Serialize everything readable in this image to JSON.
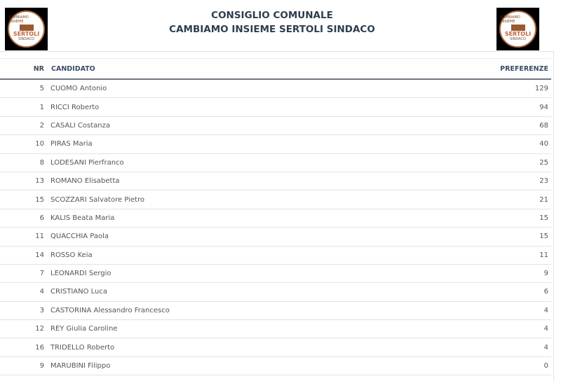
{
  "header": {
    "title_line1": "CONSIGLIO COMUNALE",
    "title_line2": "CAMBIAMO INSIEME SERTOLI SINDACO",
    "logo": {
      "top_text": "CAMBIAMO INSIEME",
      "name": "SERTOLI",
      "sub": "SINDACO"
    }
  },
  "table": {
    "columns": {
      "nr": "NR",
      "candidate": "CANDIDATO",
      "preferences": "PREFERENZE"
    },
    "rows": [
      {
        "nr": "5",
        "name": "CUOMO Antonio",
        "pref": "129"
      },
      {
        "nr": "1",
        "name": "RICCI Roberto",
        "pref": "94"
      },
      {
        "nr": "2",
        "name": "CASALI Costanza",
        "pref": "68"
      },
      {
        "nr": "10",
        "name": "PIRAS Maria",
        "pref": "40"
      },
      {
        "nr": "8",
        "name": "LODESANI Pierfranco",
        "pref": "25"
      },
      {
        "nr": "13",
        "name": "ROMANO Elisabetta",
        "pref": "23"
      },
      {
        "nr": "15",
        "name": "SCOZZARI Salvatore Pietro",
        "pref": "21"
      },
      {
        "nr": "6",
        "name": "KALIS Beata Maria",
        "pref": "15"
      },
      {
        "nr": "11",
        "name": "QUACCHIA Paola",
        "pref": "15"
      },
      {
        "nr": "14",
        "name": "ROSSO Keia",
        "pref": "11"
      },
      {
        "nr": "7",
        "name": "LEONARDI Sergio",
        "pref": "9"
      },
      {
        "nr": "4",
        "name": "CRISTIANO Luca",
        "pref": "6"
      },
      {
        "nr": "3",
        "name": "CASTORINA Alessandro Francesco",
        "pref": "4"
      },
      {
        "nr": "12",
        "name": "REY Giulia Caroline",
        "pref": "4"
      },
      {
        "nr": "16",
        "name": "TRIDELLO Roberto",
        "pref": "4"
      },
      {
        "nr": "9",
        "name": "MARUBINI Filippo",
        "pref": "0"
      }
    ]
  }
}
